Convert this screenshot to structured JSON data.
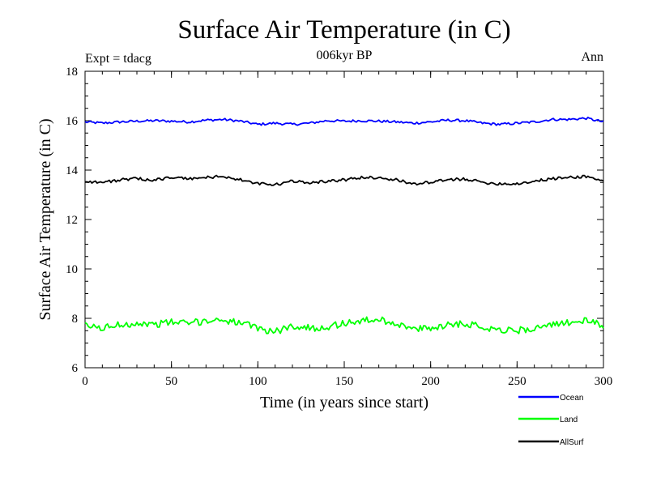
{
  "chart_data": {
    "type": "line",
    "title": "Surface Air Temperature (in C)",
    "subtitle": "006kyr BP",
    "left_note": "Expt = tdacg",
    "right_note": "Ann",
    "xlabel": "Time (in years since start)",
    "ylabel": "Surface Air Temperature (in C)",
    "xlim": [
      0,
      300
    ],
    "ylim": [
      6,
      18
    ],
    "x_ticks": [
      0,
      50,
      100,
      150,
      200,
      250,
      300
    ],
    "y_ticks": [
      6,
      8,
      10,
      12,
      14,
      16,
      18
    ],
    "grid": false,
    "legend_position": "bottom-right, below plot",
    "series": [
      {
        "name": "Ocean",
        "color": "#0000ff",
        "x": [
          0,
          10,
          20,
          30,
          40,
          50,
          60,
          70,
          80,
          90,
          100,
          110,
          120,
          130,
          140,
          150,
          160,
          170,
          180,
          190,
          200,
          210,
          220,
          230,
          240,
          250,
          260,
          270,
          280,
          290,
          300
        ],
        "values": [
          15.95,
          15.9,
          15.95,
          15.98,
          16.0,
          15.98,
          15.95,
          16.02,
          16.05,
          15.98,
          15.85,
          15.9,
          15.85,
          15.9,
          16.0,
          15.98,
          16.0,
          15.98,
          15.95,
          15.9,
          15.95,
          16.02,
          16.0,
          15.9,
          15.85,
          15.9,
          15.95,
          16.05,
          16.05,
          16.1,
          15.95
        ]
      },
      {
        "name": "Land",
        "color": "#00ff00",
        "x": [
          0,
          10,
          20,
          30,
          40,
          50,
          60,
          70,
          80,
          90,
          100,
          110,
          120,
          130,
          140,
          150,
          160,
          170,
          180,
          190,
          200,
          210,
          220,
          230,
          240,
          250,
          260,
          270,
          280,
          290,
          300
        ],
        "values": [
          7.7,
          7.6,
          7.75,
          7.8,
          7.75,
          7.85,
          7.8,
          7.9,
          7.95,
          7.8,
          7.6,
          7.45,
          7.7,
          7.6,
          7.65,
          7.8,
          7.9,
          7.95,
          7.8,
          7.55,
          7.6,
          7.75,
          7.8,
          7.65,
          7.55,
          7.5,
          7.6,
          7.7,
          7.85,
          7.9,
          7.7
        ]
      },
      {
        "name": "AllSurf",
        "color": "#000000",
        "x": [
          0,
          10,
          20,
          30,
          40,
          50,
          60,
          70,
          80,
          90,
          100,
          110,
          120,
          130,
          140,
          150,
          160,
          170,
          180,
          190,
          200,
          210,
          220,
          230,
          240,
          250,
          260,
          270,
          280,
          290,
          300
        ],
        "values": [
          13.55,
          13.5,
          13.6,
          13.65,
          13.6,
          13.7,
          13.65,
          13.7,
          13.75,
          13.6,
          13.45,
          13.4,
          13.55,
          13.5,
          13.55,
          13.6,
          13.7,
          13.7,
          13.6,
          13.45,
          13.5,
          13.6,
          13.65,
          13.5,
          13.45,
          13.45,
          13.55,
          13.65,
          13.7,
          13.75,
          13.55
        ]
      }
    ]
  }
}
